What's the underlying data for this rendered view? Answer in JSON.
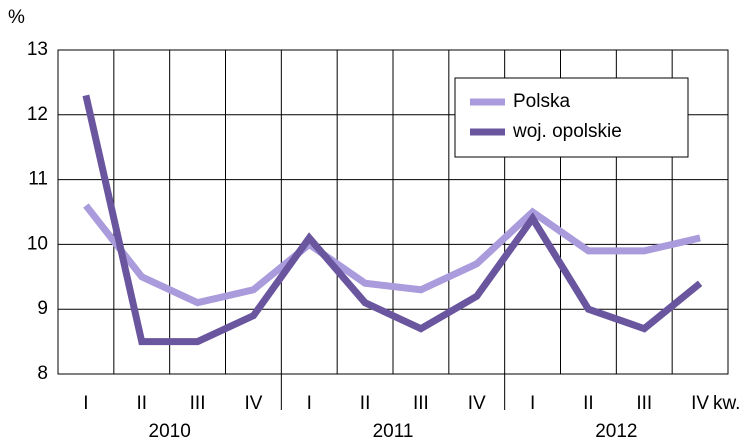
{
  "chart_data": {
    "type": "line",
    "y_label": "%",
    "x_label": "kw.",
    "categories": [
      "I",
      "II",
      "III",
      "IV",
      "I",
      "II",
      "III",
      "IV",
      "I",
      "II",
      "III",
      "IV"
    ],
    "groups": [
      "2010",
      "2011",
      "2012"
    ],
    "series": [
      {
        "name": "Polska",
        "color": "#a99bdc",
        "values": [
          10.6,
          9.5,
          9.1,
          9.3,
          10.0,
          9.4,
          9.3,
          9.7,
          10.5,
          9.9,
          9.9,
          10.1
        ]
      },
      {
        "name": "woj. opolskie",
        "color": "#6a559f",
        "values": [
          12.3,
          8.5,
          8.5,
          8.9,
          10.1,
          9.1,
          8.7,
          9.2,
          10.4,
          9.0,
          8.7,
          9.4
        ]
      }
    ],
    "ylim": [
      8,
      13
    ],
    "yticks": [
      8,
      9,
      10,
      11,
      12,
      13
    ],
    "grid": true,
    "legend": "upper right"
  }
}
